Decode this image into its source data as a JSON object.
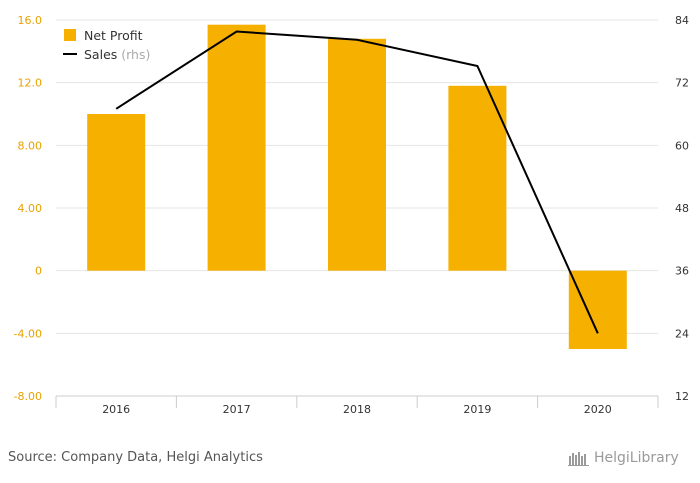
{
  "chart_data": {
    "type": "bar",
    "categories": [
      "2016",
      "2017",
      "2018",
      "2019",
      "2020"
    ],
    "series": [
      {
        "name": "Net Profit",
        "type": "bar",
        "axis": "left",
        "color": "#f5b000",
        "values": [
          10.0,
          15.7,
          14.8,
          11.8,
          -5.0
        ]
      },
      {
        "name": "Sales",
        "name_suffix": "(rhs)",
        "type": "line",
        "axis": "right",
        "color": "#000000",
        "values": [
          67.0,
          81.8,
          80.2,
          75.2,
          24.0
        ]
      }
    ],
    "y_left": {
      "ylim": [
        -8,
        16
      ],
      "ticks": [
        "-8.00",
        "-4.00",
        "0",
        "4.00",
        "8.00",
        "12.0",
        "16.0"
      ]
    },
    "y_right": {
      "ylim": [
        12,
        84
      ],
      "ticks": [
        "12",
        "24",
        "36",
        "48",
        "60",
        "72",
        "84"
      ]
    },
    "grid": true,
    "legend_position": "top-left"
  },
  "footer": {
    "source": "Source: Company Data, Helgi Analytics",
    "logo_text": "HelgiLibrary"
  },
  "colors": {
    "bar": "#f5b000",
    "line": "#000000",
    "grid": "#e6e6e6"
  }
}
